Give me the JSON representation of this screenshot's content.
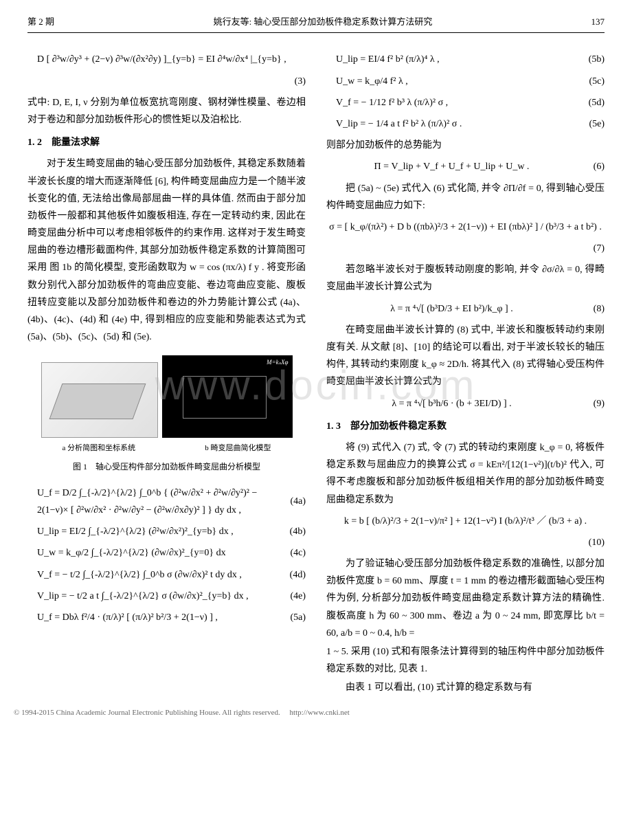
{
  "header": {
    "issue": "第 2 期",
    "title": "姚行友等: 轴心受压部分加劲板件稳定系数计算方法研究",
    "page": "137"
  },
  "left": {
    "eq3": "D [ ∂³w/∂y³ + (2−ν) ∂³w/(∂x²∂y) ]_{y=b} = EI ∂⁴w/∂x⁴ |_{y=b} ,",
    "eq3tag": "(3)",
    "p_def": "式中: D, E, I, ν 分别为单位板宽抗弯刚度、钢材弹性模量、卷边相对于卷边和部分加劲板件形心的惯性矩以及泊松比.",
    "sec12": "1. 2　能量法求解",
    "p12_1": "对于发生畸变屈曲的轴心受压部分加劲板件, 其稳定系数随着半波长长度的增大而逐渐降低 [6], 构件畸变屈曲应力是一个随半波长变化的值, 无法给出像局部屈曲一样的具体值. 然而由于部分加劲板件一般都和其他板件如腹板相连, 存在一定转动约束, 因此在畸变屈曲分析中可以考虑相邻板件的约束作用. 这样对于发生畸变屈曲的卷边槽形截面构件, 其部分加劲板件稳定系数的计算简图可采用 图 1b 的简化模型, 变形函数取为 w = cos (πx/λ) f y . 将变形函数分别代入部分加劲板件的弯曲应变能、卷边弯曲应变能、腹板扭转应变能以及部分加劲板件和卷边的外力势能计算公式 (4a)、(4b)、(4c)、(4d) 和 (4e) 中, 得到相应的应变能和势能表达式为式 (5a)、(5b)、(5c)、(5d) 和 (5e).",
    "fig": {
      "mlabel": "M=kₛXφ",
      "sub_a": "a 分析简图和坐标系统",
      "sub_b": "b 畸变屈曲简化模型",
      "caption": "图 1　轴心受压构件部分加劲板件畸变屈曲分析模型"
    },
    "eq4a": "U_f = D/2 ∫_{-λ/2}^{λ/2} ∫_0^b { (∂²w/∂x² + ∂²w/∂y²)² − 2(1−ν)× [ ∂²w/∂x² · ∂²w/∂y² − (∂²w/∂x∂y)² ] } dy dx ,",
    "eq4a_tag": "(4a)",
    "eq4b": "U_lip = EI/2 ∫_{-λ/2}^{λ/2} (∂²w/∂x²)²_{y=b} dx ,",
    "eq4b_tag": "(4b)",
    "eq4c": "U_w = k_φ/2 ∫_{-λ/2}^{λ/2} (∂w/∂x)²_{y=0} dx",
    "eq4c_tag": "(4c)",
    "eq4d": "V_f = − t/2 ∫_{-λ/2}^{λ/2} ∫_0^b σ (∂w/∂x)² t dy dx ,",
    "eq4d_tag": "(4d)",
    "eq4e": "V_lip = − t/2 a t ∫_{-λ/2}^{λ/2} σ (∂w/∂x)²_{y=b} dx ,",
    "eq4e_tag": "(4e)",
    "eq5a": "U_f = Dbλ f²/4 · (π/λ)² [ (π/λ)² b²/3 + 2(1−ν) ] ,",
    "eq5a_tag": "(5a)"
  },
  "right": {
    "eq5b": "U_lip = EI/4 f² b² (π/λ)⁴ λ ,",
    "eq5b_tag": "(5b)",
    "eq5c": "U_w = k_φ/4 f² λ ,",
    "eq5c_tag": "(5c)",
    "eq5d": "V_f = − 1/12 f² b³ λ (π/λ)² σ ,",
    "eq5d_tag": "(5d)",
    "eq5e": "V_lip = − 1/4 a t f² b² λ (π/λ)² σ .",
    "eq5e_tag": "(5e)",
    "p_pi": "则部分加劲板件的总势能为",
    "eq6": "Π = V_lip + V_f + U_f + U_lip + U_w .",
    "eq6_tag": "(6)",
    "p_sub": "把 (5a) ~ (5e) 式代入 (6) 式化简, 并令 ∂Π/∂f = 0, 得到轴心受压构件畸变屈曲应力如下:",
    "eq7": "σ = [ k_φ/(πλ²) + D b ((πbλ)²/3 + 2(1−ν)) + EI (πbλ)² ] / (b³/3 + a t b²) .",
    "eq7_tag": "(7)",
    "p_lambda": "若忽略半波长对于腹板转动刚度的影响, 并令 ∂σ/∂λ = 0, 得畸变屈曲半波长计算公式为",
    "eq8": "λ = π ⁴√[ (b³D/3 + EI b²)/k_φ ] .",
    "eq8_tag": "(8)",
    "p_after8": "在畸变屈曲半波长计算的 (8) 式中, 半波长和腹板转动约束刚度有关. 从文献 [8]、[10] 的结论可以看出, 对于半波长较长的轴压构件, 其转动约束刚度 k_φ ≈ 2D/h. 将其代入 (8) 式得轴心受压构件畸变屈曲半波长计算公式为",
    "eq9": "λ = π ⁴√[ b³h/6 · (b + 3EI/D) ] .",
    "eq9_tag": "(9)",
    "sec13": "1. 3　部分加劲板件稳定系数",
    "p13_1": "将 (9) 式代入 (7) 式, 令 (7) 式的转动约束刚度 k_φ = 0, 将板件稳定系数与屈曲应力的换算公式 σ = kEπ²/[12(1−ν²)](t/b)² 代入, 可得不考虑腹板和部分加劲板件板组相关作用的部分加劲板件畸变屈曲稳定系数为",
    "eq10": "k = b [ (b/λ)²/3 + 2(1−ν)/π² ] + 12(1−ν²) I (b/λ)²/t³  ／ (b/3 + a) .",
    "eq10_tag": "(10)",
    "p13_2": "为了验证轴心受压部分加劲板件稳定系数的准确性, 以部分加劲板件宽度 b = 60 mm、厚度 t = 1 mm 的卷边槽形截面轴心受压构件为例, 分析部分加劲板件畸变屈曲稳定系数计算方法的精确性. 腹板高度 h 为 60 ~ 300 mm、卷边 a 为 0 ~ 24 mm, 即宽厚比 b/t = 60, a/b = 0 ~ 0.4, h/b =",
    "p13_3": "1 ~ 5. 采用 (10) 式和有限条法计算得到的轴压构件中部分加劲板件稳定系数的对比, 见表 1.",
    "p13_4": "由表 1 可以看出, (10) 式计算的稳定系数与有"
  },
  "watermark": "www.docin.com",
  "footer": {
    "text": "© 1994-2015 China Academic Journal Electronic Publishing House. All rights reserved.　",
    "link": "http://www.cnki.net"
  }
}
